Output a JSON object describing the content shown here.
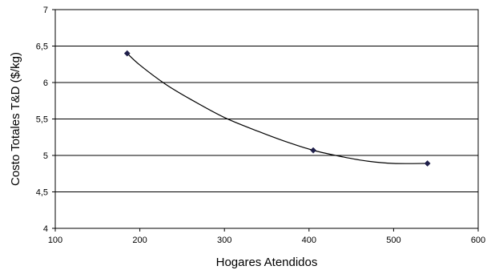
{
  "chart_data": {
    "type": "line",
    "title": "",
    "xlabel": "Hogares Atendidos",
    "ylabel": "Costo Totales T&D ($/kg)",
    "xlim": [
      100,
      600
    ],
    "ylim": [
      4,
      7
    ],
    "x_ticks": [
      100,
      200,
      300,
      400,
      500,
      600
    ],
    "y_ticks": [
      4,
      4.5,
      5,
      5.5,
      6,
      6.5,
      7
    ],
    "x_tick_labels": [
      "100",
      "200",
      "300",
      "400",
      "500",
      "600"
    ],
    "y_tick_labels": [
      "4",
      "4,5",
      "5",
      "5,5",
      "6",
      "6,5",
      "7"
    ],
    "grid": "horizontal",
    "legend": "none",
    "series": [
      {
        "color": "#000000",
        "marker_color": "#1f1f4a",
        "marker": "diamond",
        "points": [
          {
            "x": 185,
            "y": 6.4
          },
          {
            "x": 405,
            "y": 5.07
          },
          {
            "x": 540,
            "y": 4.89
          }
        ],
        "curve": [
          [
            185,
            6.4
          ],
          [
            200,
            6.24
          ],
          [
            230,
            5.98
          ],
          [
            260,
            5.77
          ],
          [
            300,
            5.52
          ],
          [
            340,
            5.33
          ],
          [
            370,
            5.2
          ],
          [
            405,
            5.07
          ],
          [
            440,
            4.98
          ],
          [
            470,
            4.92
          ],
          [
            500,
            4.89
          ],
          [
            540,
            4.89
          ]
        ]
      }
    ]
  }
}
